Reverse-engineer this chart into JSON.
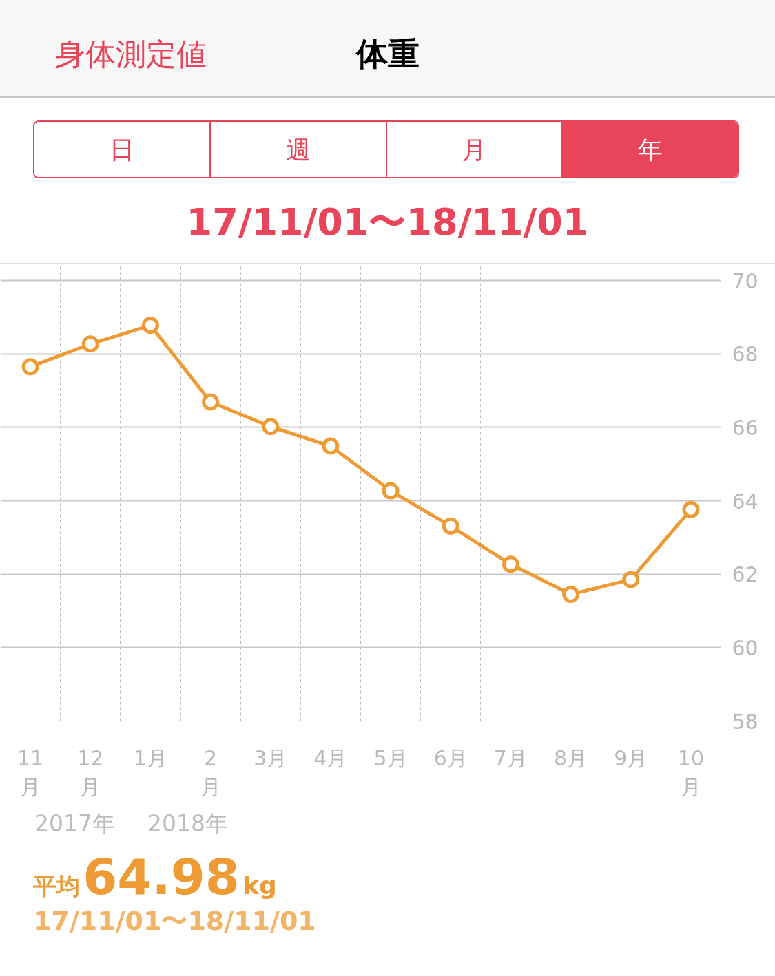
{
  "chart_data": {
    "type": "line",
    "title": "体重",
    "annotations": [
      "身体測定値",
      "日",
      "週",
      "月",
      "年",
      "17/11/01〜18/11/01",
      "2017年",
      "2018年",
      "平均",
      "64.98",
      "kg",
      "17/11/01〜18/11/01"
    ],
    "categories": [
      "11\n月",
      "12\n月",
      "1月",
      "2\n月",
      "3月",
      "4月",
      "5月",
      "6月",
      "7月",
      "8月",
      "9月",
      "10\n月"
    ],
    "series": [
      {
        "color": "#ee9b35",
        "values": [
          67.65,
          68.27,
          68.78,
          66.69,
          66.02,
          65.49,
          64.27,
          63.31,
          62.27,
          61.45,
          61.85,
          63.76
        ]
      }
    ],
    "ylim": [
      58,
      70.45
    ],
    "yticks": [
      58,
      60,
      62,
      64,
      66,
      68,
      70
    ],
    "grid": true,
    "marker": "circle",
    "line_style": "solid"
  }
}
